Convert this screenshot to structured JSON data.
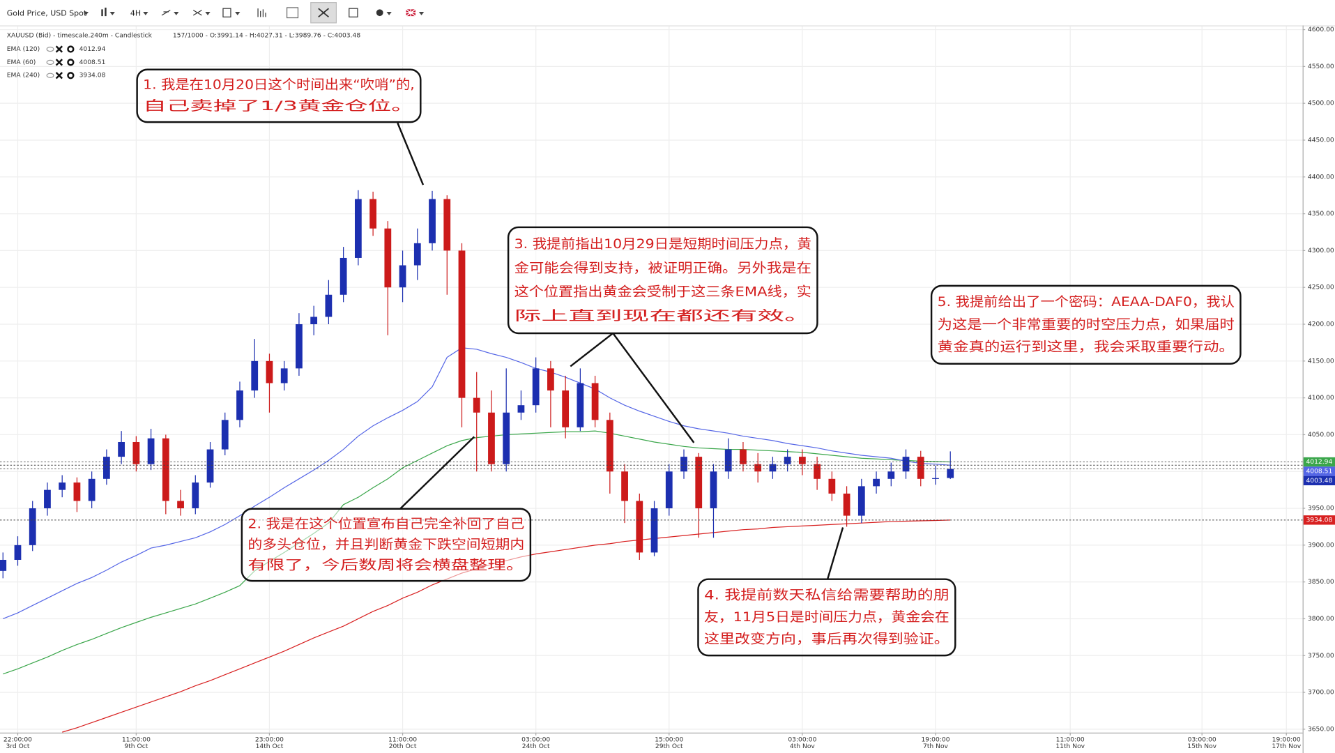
{
  "toolbar": {
    "instrument": "Gold Price, USD Spot",
    "timeframe": "4H"
  },
  "chart_data": {
    "type": "candlestick",
    "header": "XAUUSD (Bid) - timescale.240m - Candlestick",
    "status": "157/1000 - O:3991.14 - H:4027.31 - L:3989.76 - C:4003.48",
    "open": [
      3865,
      3880,
      3900,
      3950,
      3975,
      3985,
      3960,
      3990,
      4020,
      4040,
      4010,
      4045,
      3960,
      3950,
      3985,
      4030,
      4070,
      4110,
      4150,
      4120,
      4140,
      4200,
      4210,
      4240,
      4290,
      4370,
      4330,
      4250,
      4280,
      4310,
      4370,
      4300,
      4100,
      4080,
      4010,
      4080,
      4090,
      4140,
      4110,
      4060,
      4120,
      4070,
      4000,
      3960,
      3890,
      3950,
      4000,
      4020,
      3950,
      4000,
      4030,
      4010,
      4000,
      4010,
      4020,
      4010,
      3990,
      3970,
      3940,
      3980,
      3990,
      4000,
      4020,
      3990,
      3991.14
    ],
    "high": [
      3890,
      3912,
      3960,
      3985,
      3995,
      3992,
      4000,
      4030,
      4055,
      4048,
      4058,
      4050,
      3975,
      3995,
      4040,
      4080,
      4122,
      4180,
      4160,
      4150,
      4215,
      4225,
      4260,
      4305,
      4382,
      4380,
      4340,
      4300,
      4330,
      4381,
      4375,
      4310,
      4135,
      4110,
      4140,
      4110,
      4155,
      4150,
      4130,
      4140,
      4130,
      4080,
      4010,
      3970,
      3960,
      4010,
      4030,
      4025,
      4010,
      4045,
      4040,
      4025,
      4020,
      4030,
      4030,
      4020,
      4000,
      3980,
      3990,
      4000,
      4012,
      4030,
      4028,
      4008,
      4027.31
    ],
    "low": [
      3855,
      3872,
      3892,
      3940,
      3965,
      3945,
      3950,
      3982,
      4010,
      4000,
      4002,
      3942,
      3940,
      3942,
      3978,
      4022,
      4060,
      4100,
      4080,
      4110,
      4130,
      4185,
      4200,
      4230,
      4280,
      4320,
      4185,
      4230,
      4260,
      4300,
      4240,
      4060,
      4000,
      4000,
      4000,
      4070,
      4080,
      4060,
      4045,
      4055,
      4060,
      3970,
      3930,
      3880,
      3885,
      3940,
      3990,
      3910,
      3910,
      3990,
      4000,
      3985,
      3990,
      4000,
      3995,
      3975,
      3960,
      3925,
      3930,
      3970,
      3980,
      3990,
      3980,
      3982,
      3989.76
    ],
    "close": [
      3880,
      3900,
      3950,
      3975,
      3985,
      3960,
      3990,
      4020,
      4040,
      4010,
      4045,
      3960,
      3950,
      3985,
      4030,
      4070,
      4110,
      4150,
      4120,
      4140,
      4200,
      4210,
      4240,
      4290,
      4370,
      4330,
      4250,
      4280,
      4310,
      4370,
      4300,
      4100,
      4080,
      4010,
      4080,
      4090,
      4140,
      4110,
      4060,
      4120,
      4070,
      4000,
      3960,
      3890,
      3950,
      4000,
      4020,
      3950,
      4000,
      4030,
      4010,
      4000,
      4010,
      4020,
      4010,
      3990,
      3970,
      3940,
      3980,
      3990,
      4000,
      4020,
      3990,
      3991,
      4003.48
    ],
    "up_color": "#1c2fb0",
    "down_color": "#cc1a1a",
    "series": [
      {
        "name": "EMA (120)",
        "color": "#3aa64a",
        "values": [
          3725,
          3732,
          3740,
          3748,
          3757,
          3765,
          3772,
          3780,
          3788,
          3795,
          3802,
          3808,
          3814,
          3820,
          3828,
          3836,
          3845,
          3865,
          3878,
          3890,
          3903,
          3916,
          3930,
          3955,
          3965,
          3978,
          3990,
          4005,
          4015,
          4025,
          4035,
          4042,
          4046,
          4048,
          4050,
          4051,
          4052,
          4053,
          4054,
          4054,
          4055,
          4052,
          4048,
          4044,
          4040,
          4037,
          4034,
          4032,
          4031,
          4030,
          4030,
          4029,
          4028,
          4027,
          4026,
          4024,
          4022,
          4020,
          4018,
          4017,
          4016,
          4015,
          4014,
          4013.5,
          4012.94
        ]
      },
      {
        "name": "EMA (60)",
        "color": "#5566e6",
        "values": [
          3800,
          3808,
          3818,
          3828,
          3838,
          3848,
          3856,
          3866,
          3877,
          3886,
          3896,
          3900,
          3905,
          3910,
          3918,
          3928,
          3940,
          3953,
          3965,
          3978,
          3990,
          4002,
          4015,
          4030,
          4048,
          4062,
          4073,
          4083,
          4095,
          4115,
          4155,
          4168,
          4166,
          4160,
          4155,
          4148,
          4140,
          4135,
          4128,
          4120,
          4112,
          4100,
          4090,
          4082,
          4075,
          4068,
          4062,
          4058,
          4055,
          4052,
          4048,
          4045,
          4042,
          4038,
          4035,
          4032,
          4028,
          4025,
          4022,
          4020,
          4018,
          4014,
          4011,
          4010,
          4008.51
        ]
      },
      {
        "name": "EMA (240)",
        "color": "#d82020",
        "values": [
          null,
          null,
          null,
          null,
          3646,
          3652,
          3659,
          3666,
          3673,
          3680,
          3687,
          3694,
          3701,
          3709,
          3716,
          3724,
          3732,
          3740,
          3748,
          3756,
          3765,
          3774,
          3782,
          3790,
          3800,
          3810,
          3818,
          3828,
          3836,
          3846,
          3854,
          3862,
          3868,
          3874,
          3879,
          3884,
          3888,
          3891,
          3894,
          3897,
          3900,
          3902,
          3905,
          3907,
          3909,
          3911,
          3913,
          3915,
          3917,
          3919,
          3921,
          3922,
          3924,
          3925,
          3926,
          3927,
          3928,
          3929,
          3930,
          3931,
          3932,
          3932.5,
          3933,
          3933.5,
          3934.08
        ]
      }
    ],
    "xlim": [
      -0.2,
      87.8
    ],
    "xticks": [
      {
        "value": 1,
        "label": "22:00:00",
        "date": "3rd Oct"
      },
      {
        "value": 9,
        "label": "11:00:00",
        "date": "9th Oct"
      },
      {
        "value": 18,
        "label": "23:00:00",
        "date": "14th Oct"
      },
      {
        "value": 27,
        "label": "11:00:00",
        "date": "20th Oct"
      },
      {
        "value": 36,
        "label": "03:00:00",
        "date": "24th Oct"
      },
      {
        "value": 45,
        "label": "15:00:00",
        "date": "29th Oct"
      },
      {
        "value": 54,
        "label": "03:00:00",
        "date": "4th Nov"
      },
      {
        "value": 63,
        "label": "19:00:00",
        "date": "7th Nov"
      },
      {
        "value": 72.1,
        "label": "11:00:00",
        "date": "11th Nov"
      },
      {
        "value": 81,
        "label": "03:00:00",
        "date": "15th Nov"
      },
      {
        "value": 86.7,
        "label": "19:00:00",
        "date": "17th Nov"
      }
    ],
    "ylim": [
      3645,
      4610
    ],
    "yticks": [
      {
        "value": 3650,
        "label": "3650.00"
      },
      {
        "value": 3700,
        "label": "3700.00"
      },
      {
        "value": 3750,
        "label": "3750.00"
      },
      {
        "value": 3800,
        "label": "3800.00"
      },
      {
        "value": 3850,
        "label": "3850.00"
      },
      {
        "value": 3900,
        "label": "3900.00"
      },
      {
        "value": 3950,
        "label": "3950.00"
      },
      {
        "value": 4000,
        "label": "4000.00"
      },
      {
        "value": 4050,
        "label": "4050.00"
      },
      {
        "value": 4100,
        "label": "4100.00"
      },
      {
        "value": 4150,
        "label": "4150.00"
      },
      {
        "value": 4200,
        "label": "4200.00"
      },
      {
        "value": 4250,
        "label": "4250.00"
      },
      {
        "value": 4300,
        "label": "4300.00"
      },
      {
        "value": 4350,
        "label": "4350.00"
      },
      {
        "value": 4400,
        "label": "4400.00"
      },
      {
        "value": 4450,
        "label": "4450.00"
      },
      {
        "value": 4500,
        "label": "4500.00"
      },
      {
        "value": 4550,
        "label": "4550.00"
      },
      {
        "value": 4600,
        "label": "4600.00"
      }
    ],
    "grid": true,
    "annotations": [
      {
        "lines": [
          "1. 我是在10月20日这个时间出来“吹哨”的,",
          "自己卖掉了1/3黄金仓位。"
        ]
      },
      {
        "lines": [
          "2. 我是在这个位置宣布自己完全补回了自己",
          "的多头仓位，并且判断黄金下跌空间短期内",
          "有限了，今后数周将会横盘整理。"
        ]
      },
      {
        "lines": [
          "3. 我提前指出10月29日是短期时间压力点，黄",
          "金可能会得到支持，被证明正确。另外我是在",
          "这个位置指出黄金会受制于这三条EMA线，实",
          "际上直到现在都还有效。"
        ]
      },
      {
        "lines": [
          "4. 我提前数天私信给需要帮助的朋",
          "友，11月5日是时间压力点，黄金会在",
          "这里改变方向，事后再次得到验证。"
        ]
      },
      {
        "lines": [
          "5. 我提前给出了一个密码：AEAA-DAF0，我认",
          "为这是一个非常重要的时空压力点，如果届时",
          "黄金真的运行到这里，我会采取重要行动。"
        ]
      }
    ]
  }
}
